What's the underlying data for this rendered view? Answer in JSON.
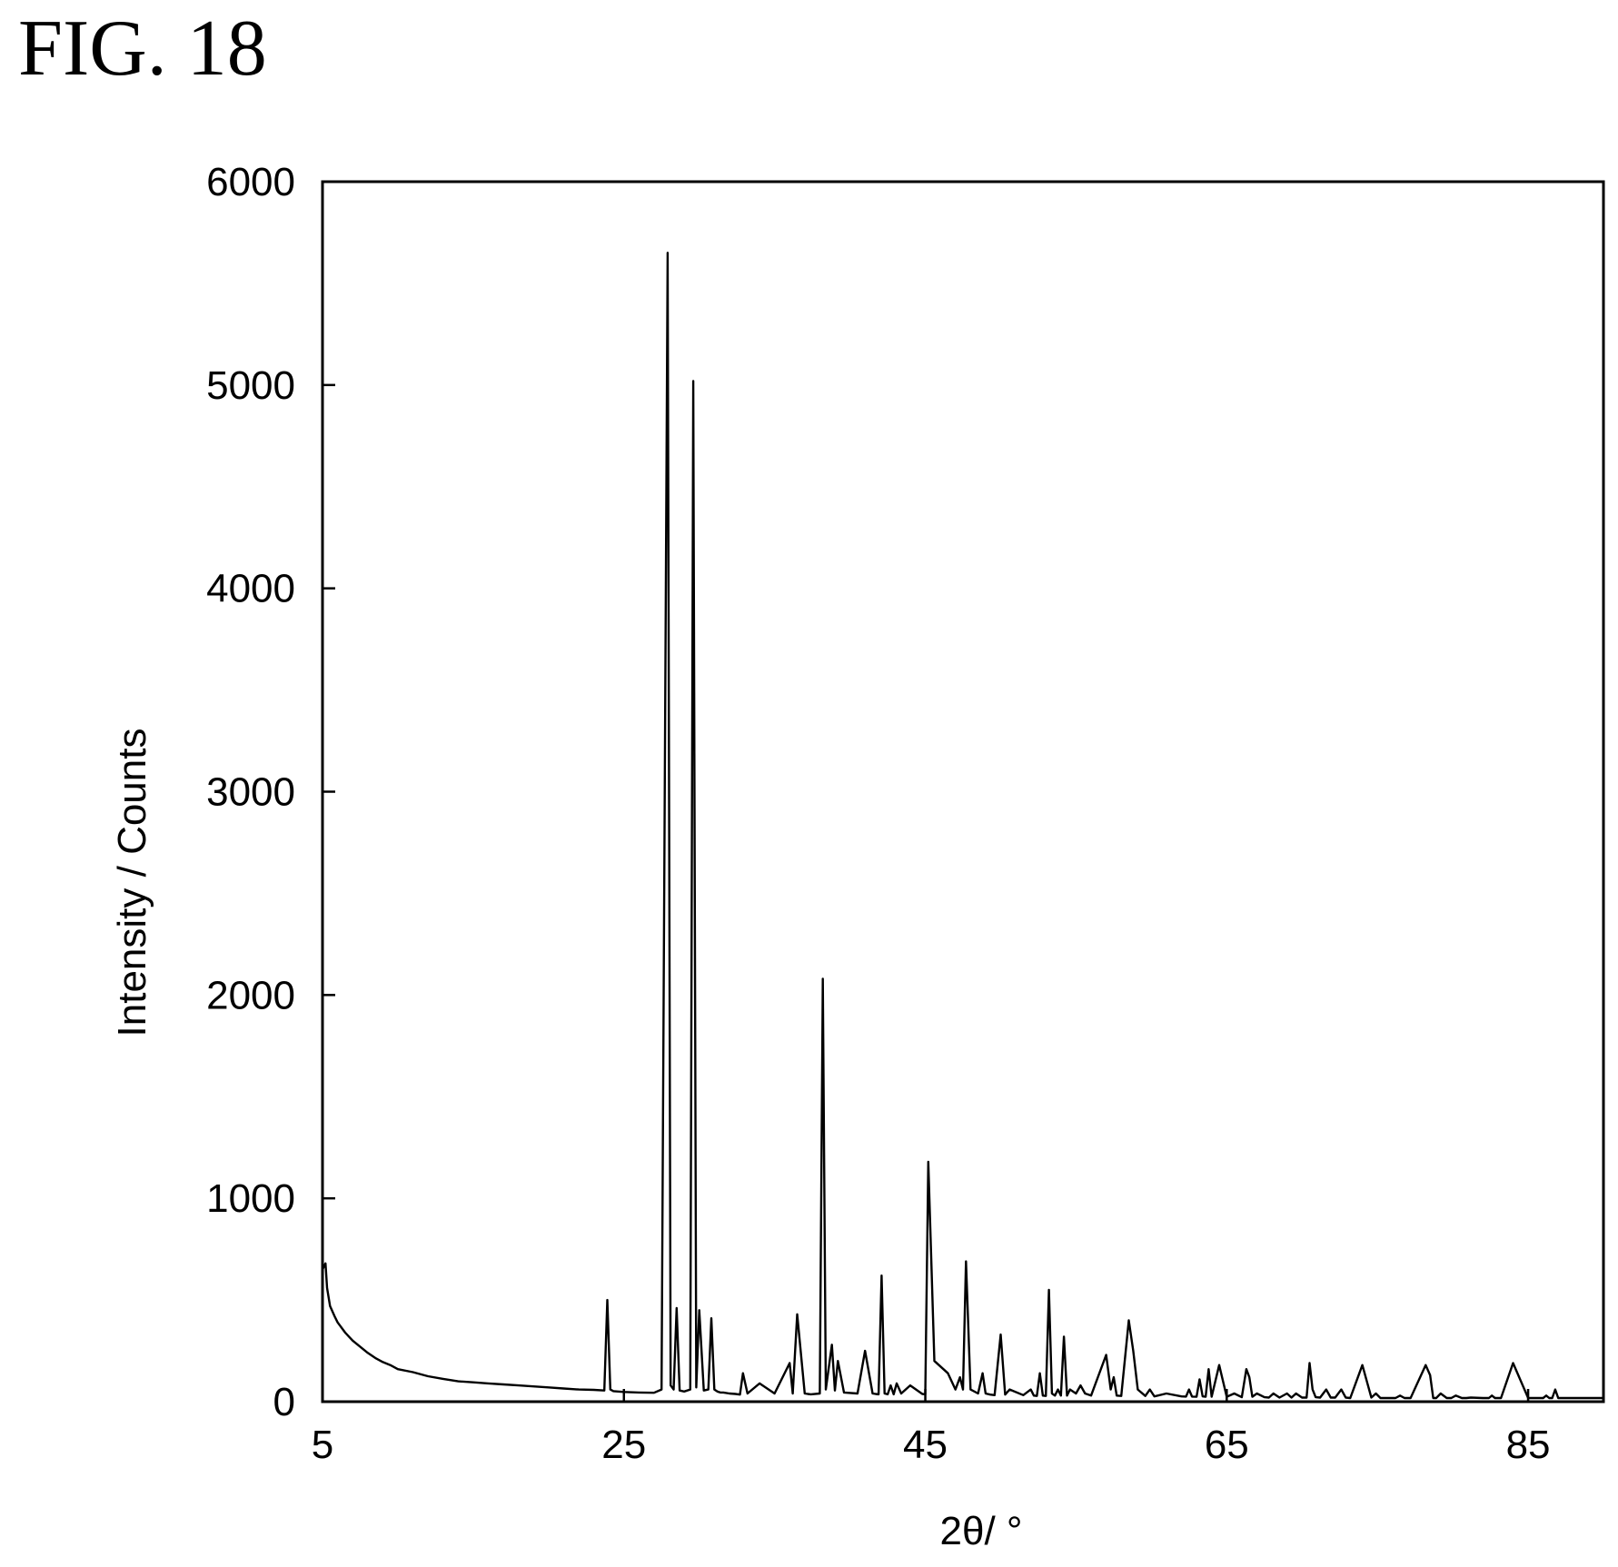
{
  "figure": {
    "label": "FIG. 18"
  },
  "chart_data": {
    "type": "line",
    "title": "",
    "xlabel": "2θ/ °",
    "ylabel": "Intensity / Counts",
    "xlim": [
      5,
      90
    ],
    "ylim": [
      0,
      6000
    ],
    "x_ticks": [
      5,
      25,
      45,
      65,
      85
    ],
    "y_ticks": [
      0,
      1000,
      2000,
      3000,
      4000,
      5000,
      6000
    ],
    "grid": false,
    "legend": "none",
    "line_color": "#000000",
    "series": [
      {
        "x": [
          5.0,
          5.2,
          5.3,
          5.5,
          5.8,
          6.0,
          6.5,
          7.0,
          7.5,
          8.0,
          8.5,
          9.0,
          9.5,
          10.0,
          11.0,
          12.0,
          13.0,
          14.0,
          15.0,
          16.0,
          17.0,
          18.0,
          19.0,
          20.0,
          21.0,
          22.0,
          23.0,
          23.7,
          23.9,
          24.1,
          24.3,
          24.6,
          25.0,
          26.0,
          27.0,
          27.5,
          27.9,
          28.1,
          28.3,
          28.5,
          28.7,
          29.0,
          29.4,
          29.6,
          29.8,
          30.0,
          30.3,
          30.6,
          30.8,
          31.0,
          31.2,
          31.4,
          31.6,
          32.0,
          32.4,
          32.7,
          32.9,
          33.2,
          34.0,
          35.0,
          36.0,
          36.2,
          36.5,
          37.0,
          37.2,
          37.4,
          38.0,
          38.2,
          38.4,
          38.8,
          39.0,
          39.2,
          39.6,
          40.5,
          41.0,
          41.5,
          41.7,
          41.9,
          42.1,
          42.3,
          42.5,
          42.7,
          42.9,
          43.1,
          43.4,
          44.0,
          44.8,
          45.0,
          45.2,
          45.6,
          46.5,
          47.0,
          47.3,
          47.5,
          47.7,
          48.0,
          48.5,
          48.8,
          49.0,
          49.3,
          49.6,
          50.0,
          50.3,
          50.6,
          51.5,
          52.0,
          52.2,
          52.4,
          52.6,
          52.8,
          53.0,
          53.2,
          53.4,
          53.6,
          53.8,
          54.0,
          54.2,
          54.4,
          54.6,
          55.0,
          55.3,
          55.6,
          56.0,
          57.0,
          57.3,
          57.5,
          57.7,
          58.0,
          58.5,
          58.8,
          59.1,
          59.6,
          59.9,
          60.2,
          61.0,
          62.0,
          62.3,
          62.5,
          62.7,
          63.0,
          63.2,
          63.4,
          63.6,
          63.8,
          64.0,
          64.5,
          65.0,
          65.5,
          66.0,
          66.3,
          66.5,
          66.7,
          67.0,
          67.5,
          67.8,
          68.1,
          68.5,
          69.0,
          69.3,
          69.6,
          70.0,
          70.3,
          70.5,
          70.7,
          70.9,
          71.2,
          71.6,
          71.9,
          72.2,
          72.6,
          72.9,
          73.2,
          74.0,
          74.6,
          74.9,
          75.2,
          76.2,
          76.5,
          76.8,
          77.2,
          78.2,
          78.5,
          78.7,
          78.9,
          79.2,
          79.6,
          79.9,
          80.2,
          80.6,
          80.9,
          81.2,
          82.0,
          82.4,
          82.6,
          82.8,
          83.2,
          84.0,
          85.0,
          86.0,
          86.2,
          86.4,
          86.6,
          86.8,
          87.0,
          87.3,
          87.5,
          87.7,
          88.0,
          88.5,
          88.8,
          89.0,
          89.3,
          89.7,
          90.0
        ],
        "y": [
          650,
          680,
          560,
          470,
          420,
          390,
          340,
          300,
          270,
          240,
          215,
          195,
          180,
          160,
          145,
          125,
          112,
          100,
          95,
          90,
          85,
          80,
          75,
          70,
          65,
          60,
          58,
          55,
          500,
          60,
          52,
          50,
          48,
          45,
          44,
          60,
          5650,
          80,
          60,
          460,
          55,
          50,
          60,
          5020,
          70,
          450,
          55,
          60,
          410,
          60,
          50,
          45,
          45,
          40,
          38,
          35,
          140,
          40,
          90,
          40,
          190,
          40,
          430,
          40,
          38,
          36,
          40,
          2080,
          60,
          280,
          55,
          200,
          45,
          40,
          250,
          40,
          38,
          36,
          620,
          40,
          36,
          80,
          36,
          90,
          40,
          80,
          38,
          36,
          1180,
          200,
          140,
          60,
          120,
          60,
          690,
          60,
          40,
          140,
          40,
          35,
          32,
          330,
          35,
          60,
          32,
          60,
          30,
          28,
          140,
          30,
          28,
          550,
          40,
          30,
          60,
          30,
          320,
          30,
          60,
          40,
          80,
          40,
          30,
          230,
          60,
          120,
          30,
          28,
          400,
          250,
          60,
          28,
          60,
          26,
          40,
          26,
          25,
          60,
          25,
          24,
          110,
          26,
          24,
          160,
          24,
          180,
          24,
          40,
          22,
          160,
          120,
          24,
          40,
          22,
          20,
          40,
          20,
          40,
          20,
          40,
          20,
          20,
          190,
          60,
          22,
          20,
          60,
          20,
          20,
          60,
          20,
          18,
          180,
          20,
          40,
          18,
          18,
          30,
          18,
          18,
          180,
          130,
          18,
          18,
          40,
          18,
          18,
          30,
          18,
          18,
          20,
          18,
          18,
          30,
          18,
          18,
          190,
          18,
          18,
          30,
          18,
          18,
          60,
          18,
          18,
          18,
          18,
          18,
          18,
          18,
          18,
          18,
          18,
          18
        ]
      }
    ]
  }
}
